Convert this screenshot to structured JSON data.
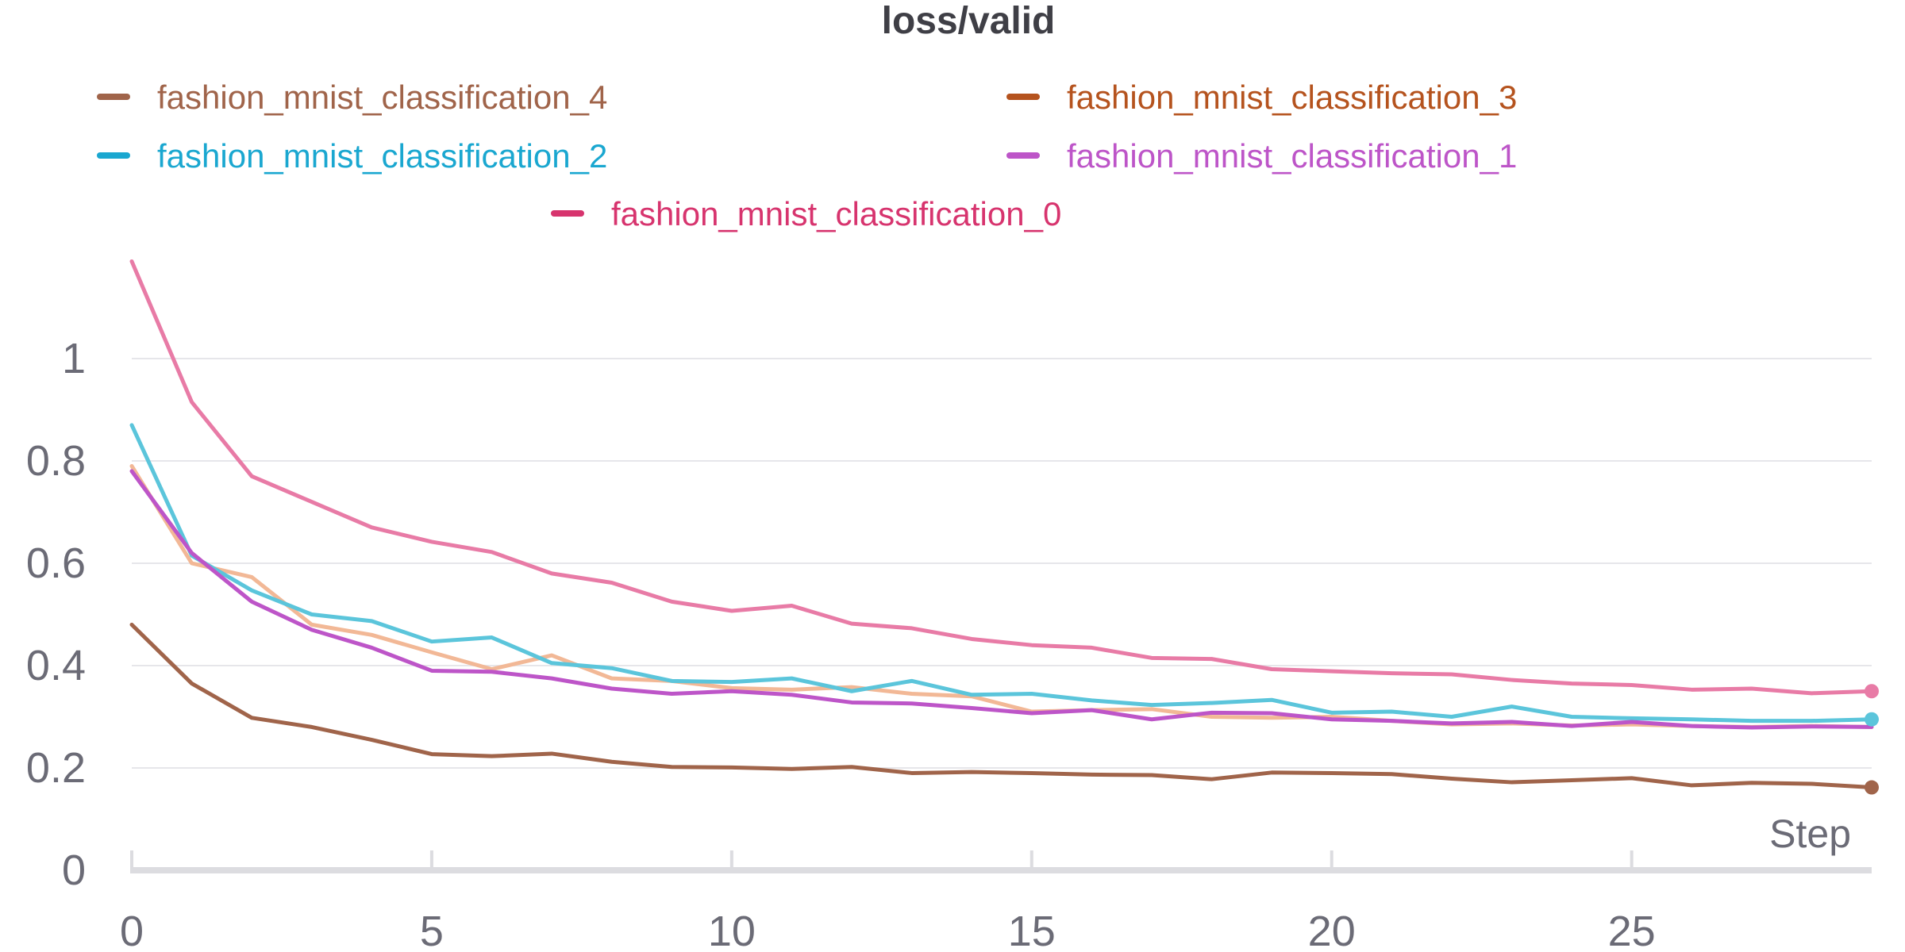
{
  "chart_data": {
    "type": "line",
    "title": "loss/valid",
    "xlabel": "Step",
    "ylabel": "",
    "xlim": [
      0,
      29
    ],
    "ylim": [
      0,
      1.2
    ],
    "x_ticks": [
      "0",
      "5",
      "10",
      "15",
      "20",
      "25"
    ],
    "y_ticks": [
      "0",
      "0.2",
      "0.4",
      "0.6",
      "0.8",
      "1"
    ],
    "grid": true,
    "legend_position": "top",
    "x": [
      0,
      1,
      2,
      3,
      4,
      5,
      6,
      7,
      8,
      9,
      10,
      11,
      12,
      13,
      14,
      15,
      16,
      17,
      18,
      19,
      20,
      21,
      22,
      23,
      24,
      25,
      26,
      27,
      28,
      29
    ],
    "series": [
      {
        "name": "fashion_mnist_classification_4",
        "color": "#a0644a",
        "legend_color": "#a0644a",
        "end_marker": true,
        "values": [
          0.48,
          0.365,
          0.298,
          0.28,
          0.255,
          0.227,
          0.223,
          0.228,
          0.212,
          0.202,
          0.201,
          0.198,
          0.202,
          0.19,
          0.192,
          0.19,
          0.187,
          0.186,
          0.178,
          0.191,
          0.19,
          0.188,
          0.179,
          0.172,
          0.176,
          0.18,
          0.166,
          0.171,
          0.169,
          0.162
        ]
      },
      {
        "name": "fashion_mnist_classification_3",
        "color": "#f2b896",
        "legend_color": "#b5531e",
        "end_marker": false,
        "values": [
          0.79,
          0.6,
          0.573,
          0.48,
          0.46,
          0.426,
          0.393,
          0.42,
          0.375,
          0.37,
          0.356,
          0.353,
          0.358,
          0.345,
          0.34,
          0.31,
          0.313,
          0.315,
          0.3,
          0.298,
          0.3,
          0.292,
          0.285,
          0.287,
          0.283,
          0.285,
          0.282,
          0.28,
          0.282,
          0.28
        ]
      },
      {
        "name": "fashion_mnist_classification_2",
        "color": "#5bc5db",
        "legend_color": "#1aa7d0",
        "end_marker": true,
        "values": [
          0.87,
          0.615,
          0.547,
          0.5,
          0.487,
          0.447,
          0.455,
          0.405,
          0.395,
          0.37,
          0.368,
          0.375,
          0.35,
          0.37,
          0.343,
          0.345,
          0.332,
          0.323,
          0.327,
          0.333,
          0.308,
          0.31,
          0.3,
          0.32,
          0.3,
          0.297,
          0.295,
          0.292,
          0.292,
          0.295
        ]
      },
      {
        "name": "fashion_mnist_classification_1",
        "color": "#bd55c8",
        "legend_color": "#bd55c8",
        "end_marker": false,
        "values": [
          0.78,
          0.62,
          0.525,
          0.47,
          0.435,
          0.39,
          0.388,
          0.375,
          0.355,
          0.345,
          0.35,
          0.343,
          0.328,
          0.326,
          0.317,
          0.307,
          0.313,
          0.295,
          0.308,
          0.307,
          0.295,
          0.292,
          0.287,
          0.29,
          0.282,
          0.29,
          0.282,
          0.279,
          0.281,
          0.28
        ]
      },
      {
        "name": "fashion_mnist_classification_0",
        "color": "#e87ba6",
        "legend_color": "#d7346e",
        "end_marker": true,
        "values": [
          1.19,
          0.915,
          0.77,
          0.72,
          0.67,
          0.642,
          0.622,
          0.58,
          0.562,
          0.525,
          0.507,
          0.517,
          0.482,
          0.473,
          0.452,
          0.44,
          0.435,
          0.415,
          0.413,
          0.393,
          0.389,
          0.385,
          0.383,
          0.372,
          0.365,
          0.362,
          0.353,
          0.355,
          0.346,
          0.35
        ]
      }
    ]
  }
}
